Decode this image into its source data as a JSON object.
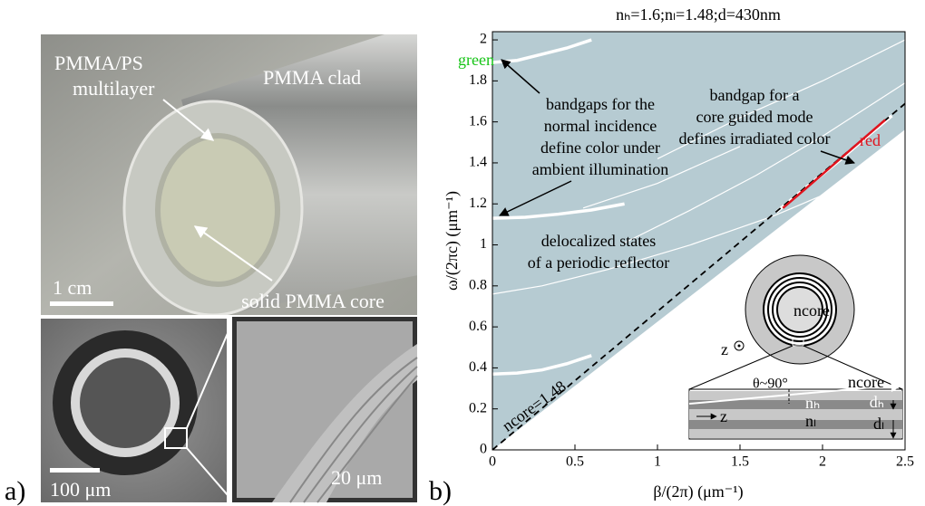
{
  "left_panel": {
    "panel_label": "a)",
    "top_photo": {
      "multilayer_label": [
        "PMMA/PS",
        "multilayer"
      ],
      "clad_label": "PMMA clad",
      "scale_bar": "1 cm",
      "core_label": "solid PMMA core"
    },
    "sem_left": {
      "scale_bar": "100 μm"
    },
    "sem_right": {
      "scale_bar": "20 μm"
    }
  },
  "chart_data": {
    "type": "line",
    "panel_label": "b)",
    "title": "nₕ=1.6;nₗ=1.48;d=430nm",
    "x_label": "β/(2π) (μm⁻¹)",
    "y_label": "ω/(2πc) (μm⁻¹)",
    "xlim": [
      0,
      2.5
    ],
    "ylim": [
      0,
      2.04
    ],
    "xticks": [
      0,
      0.5,
      1,
      1.5,
      2,
      2.5
    ],
    "yticks": [
      0,
      0.2,
      0.4,
      0.6,
      0.8,
      1,
      1.2,
      1.4,
      1.6,
      1.8,
      2
    ],
    "series": [
      {
        "style": "fill_above",
        "color": "#b6cbd2",
        "x": [
          0,
          2.5
        ],
        "values": [
          0,
          1.5625
        ]
      },
      {
        "style": "thin",
        "color": "#ffffff",
        "x": [
          0,
          0.3,
          0.7,
          1.2,
          1.7,
          2.2,
          2.5
        ],
        "values": [
          0.76,
          0.8,
          0.88,
          1.0,
          1.14,
          1.31,
          1.42
        ]
      },
      {
        "style": "thin",
        "color": "#ffffff",
        "x": [
          0.8,
          1.2,
          1.6,
          2.0,
          2.5
        ],
        "values": [
          1.01,
          1.17,
          1.34,
          1.53,
          1.79
        ]
      },
      {
        "style": "thin",
        "color": "#ffffff",
        "x": [
          1.0,
          1.5,
          2.0,
          2.5
        ],
        "values": [
          1.42,
          1.62,
          1.8,
          2.0
        ]
      },
      {
        "style": "thin",
        "color": "#ffffff",
        "x": [
          0.55,
          1.0,
          1.5
        ],
        "values": [
          1.18,
          1.3,
          1.48
        ]
      },
      {
        "style": "thick",
        "color": "#ffffff",
        "x": [
          0,
          0.15,
          0.3,
          0.45,
          0.6
        ],
        "values": [
          1.89,
          1.9,
          1.93,
          1.96,
          2.0
        ]
      },
      {
        "style": "thick",
        "color": "#ffffff",
        "x": [
          0,
          0.2,
          0.4,
          0.6,
          0.8
        ],
        "values": [
          1.13,
          1.135,
          1.15,
          1.17,
          1.2
        ]
      },
      {
        "style": "thick",
        "color": "#ffffff",
        "x": [
          0,
          0.15,
          0.3,
          0.45,
          0.6
        ],
        "values": [
          0.37,
          0.375,
          0.39,
          0.42,
          0.46
        ]
      },
      {
        "style": "thick",
        "color": "#ffffff",
        "x": [
          1.72,
          1.9,
          2.1,
          2.3,
          2.42
        ],
        "values": [
          1.16,
          1.28,
          1.41,
          1.55,
          1.63
        ]
      },
      {
        "style": "dashed",
        "color": "#000000",
        "x": [
          0,
          2.5
        ],
        "values": [
          0,
          1.689
        ]
      },
      {
        "style": "medium",
        "color": "#e0141e",
        "x": [
          1.76,
          1.95,
          2.15,
          2.38
        ],
        "values": [
          1.18,
          1.31,
          1.45,
          1.61
        ]
      }
    ],
    "annotations": [
      {
        "lines": [
          "green"
        ],
        "color": "#16c416"
      },
      {
        "lines": [
          "red"
        ],
        "color": "#e0141e"
      },
      {
        "lines": [
          "bandgaps for the",
          "normal incidence",
          "define color under",
          "ambient illumination"
        ],
        "color": "#000000"
      },
      {
        "lines": [
          "bandgap for a",
          "core guided mode",
          "defines irradiated color"
        ],
        "color": "#000000"
      },
      {
        "lines": [
          "delocalized states",
          "of a periodic reflector"
        ],
        "color": "#000000"
      },
      {
        "lines": [
          "ncore=1.48"
        ],
        "color": "#000000"
      }
    ],
    "inset": {
      "core_label": "ncore",
      "axis_label": "z",
      "angle_label": "θ~90°",
      "layer_core_label": "ncore",
      "high_index_label": "nₕ",
      "low_index_label": "nₗ",
      "high_thickness_label": "dₕ",
      "low_thickness_label": "dₗ",
      "direction_label": "z"
    }
  }
}
